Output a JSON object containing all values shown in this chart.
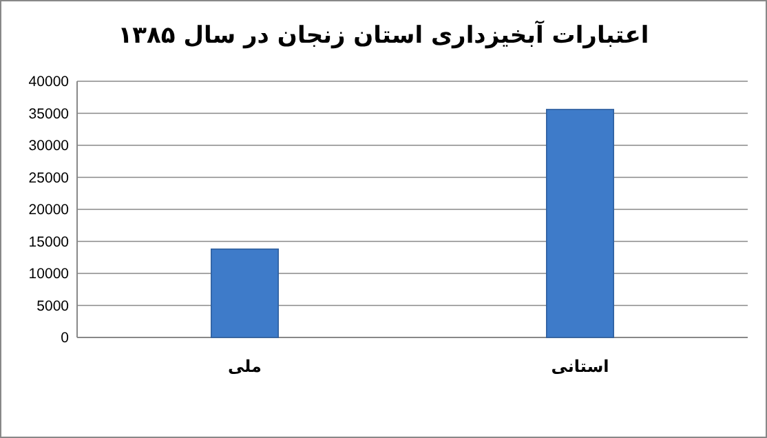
{
  "chart_data": {
    "type": "bar",
    "title": "اعتبارات آبخیزداری استان زنجان در سال ۱۳۸۵",
    "categories": [
      "ملی",
      "استانی"
    ],
    "values": [
      13800,
      35600
    ],
    "color": "#3e7bc9",
    "ylim": [
      0,
      40000
    ],
    "yticks": [
      0,
      5000,
      10000,
      15000,
      20000,
      25000,
      30000,
      35000,
      40000
    ],
    "grid": "y"
  }
}
